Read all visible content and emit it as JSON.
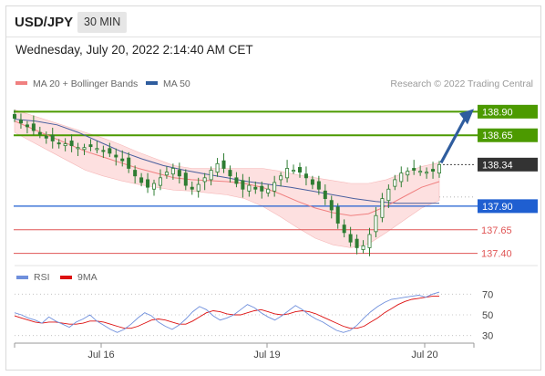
{
  "header": {
    "symbol": "USD/JPY",
    "timeframe": "30 MIN"
  },
  "datetime": "Wednesday, July 20, 2022 2:14:40 AM CET",
  "legend": {
    "items": [
      {
        "label": "MA 20 + Bollinger Bands",
        "color": "#f08080"
      },
      {
        "label": "MA 50",
        "color": "#2f5d9e"
      }
    ],
    "credit": "Research © 2022 Trading Central"
  },
  "rsi_legend": {
    "items": [
      {
        "label": "RSI",
        "color": "#6f8fdc"
      },
      {
        "label": "9MA",
        "color": "#dd1111"
      }
    ]
  },
  "colors": {
    "candle": "#2e7d32",
    "resistance": "#4c9a00",
    "pivot": "#1f5fd1",
    "support": "#e05555",
    "arrow": "#2f5d9e",
    "band_fill": "#fde0e0",
    "ma20": "#f08080",
    "ma50": "#4a5f9e"
  },
  "chart_data": [
    {
      "type": "line",
      "title": "USD/JPY 30 MIN",
      "y_range": [
        137.3,
        139.0
      ],
      "x_ticks": [
        "Jul 16",
        "Jul 19",
        "Jul 20"
      ],
      "levels": [
        {
          "value": 138.9,
          "label": "138.90",
          "kind": "resistance"
        },
        {
          "value": 138.65,
          "label": "138.65",
          "kind": "resistance"
        },
        {
          "value": 138.34,
          "label": "138.34",
          "kind": "current"
        },
        {
          "value": 137.9,
          "label": "137.90",
          "kind": "pivot"
        },
        {
          "value": 137.65,
          "label": "137.65",
          "kind": "support"
        },
        {
          "value": 137.4,
          "label": "137.40",
          "kind": "support"
        }
      ],
      "series": [
        {
          "name": "USD/JPY",
          "values": [
            138.83,
            138.78,
            138.74,
            138.7,
            138.66,
            138.62,
            138.59,
            138.56,
            138.56,
            138.54,
            138.52,
            138.52,
            138.53,
            138.51,
            138.48,
            138.46,
            138.42,
            138.38,
            138.3,
            138.22,
            138.15,
            138.1,
            138.14,
            138.2,
            138.26,
            138.3,
            138.22,
            138.12,
            138.08,
            138.13,
            138.2,
            138.28,
            138.35,
            138.3,
            138.22,
            138.14,
            138.08,
            138.12,
            138.08,
            138.06,
            138.08,
            138.15,
            138.22,
            138.3,
            138.28,
            138.26,
            138.2,
            138.13,
            138.08,
            137.98,
            137.86,
            137.72,
            137.62,
            137.52,
            137.46,
            137.48,
            137.6,
            137.8,
            137.98,
            138.08,
            138.18,
            138.25,
            138.27,
            138.28,
            138.27,
            138.26,
            138.27,
            138.34
          ]
        },
        {
          "name": "MA 20",
          "values": [
            138.8,
            138.72,
            138.64,
            138.56,
            138.48,
            138.42,
            138.36,
            138.3,
            138.25,
            138.2,
            138.18,
            138.17,
            138.16,
            138.14,
            138.1,
            138.03,
            137.95,
            137.88,
            137.83,
            137.8,
            137.82,
            137.9,
            138.0,
            138.1,
            138.16
          ]
        },
        {
          "name": "MA 50",
          "values": [
            138.82,
            138.8,
            138.76,
            138.68,
            138.58,
            138.48,
            138.4,
            138.33,
            138.28,
            138.24,
            138.2,
            138.16,
            138.13,
            138.1,
            138.06,
            138.02,
            137.98,
            137.95,
            137.93,
            137.93,
            137.93
          ]
        }
      ]
    },
    {
      "type": "line",
      "title": "RSI",
      "y_ticks": [
        70,
        50,
        30
      ],
      "series": [
        {
          "name": "RSI",
          "values": [
            52,
            50,
            47,
            45,
            42,
            48,
            44,
            41,
            38,
            43,
            46,
            50,
            44,
            40,
            36,
            33,
            36,
            41,
            47,
            52,
            49,
            43,
            39,
            36,
            40,
            46,
            53,
            58,
            55,
            49,
            45,
            47,
            50,
            55,
            60,
            57,
            52,
            48,
            45,
            49,
            54,
            59,
            55,
            50,
            46,
            43,
            39,
            35,
            33,
            35,
            40,
            47,
            53,
            58,
            62,
            65,
            66,
            67,
            68,
            69,
            67,
            70,
            72
          ]
        },
        {
          "name": "9MA",
          "values": [
            49,
            47,
            45,
            43,
            42,
            43,
            43,
            42,
            41,
            41,
            42,
            44,
            44,
            43,
            41,
            39,
            37,
            37,
            39,
            42,
            45,
            46,
            45,
            43,
            41,
            41,
            44,
            48,
            52,
            54,
            53,
            51,
            50,
            50,
            52,
            54,
            55,
            53,
            51,
            50,
            51,
            53,
            54,
            53,
            51,
            48,
            45,
            42,
            39,
            37,
            37,
            39,
            43,
            47,
            52,
            56,
            60,
            63,
            65,
            66,
            67,
            68,
            68
          ]
        }
      ]
    }
  ]
}
